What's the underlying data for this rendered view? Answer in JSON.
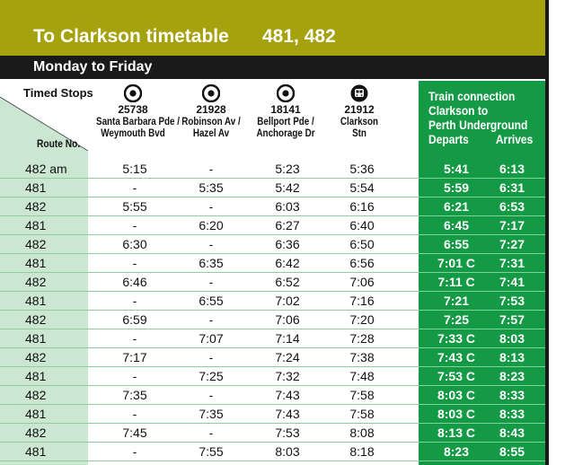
{
  "title": {
    "main": "To Clarkson timetable",
    "routes": "481, 482"
  },
  "day_label": "Monday to Friday",
  "header": {
    "timed_stops": "Timed Stops",
    "route_no": "Route No.",
    "stops": [
      {
        "id": "25738",
        "line1": "Santa Barbara Pde /",
        "line2": "Weymouth Bvd",
        "icon": "bus-stop-icon"
      },
      {
        "id": "21928",
        "line1": "Robinson Av /",
        "line2": "Hazel Av",
        "icon": "bus-stop-icon"
      },
      {
        "id": "18141",
        "line1": "Bellport Pde /",
        "line2": "Anchorage Dr",
        "icon": "bus-stop-icon"
      },
      {
        "id": "21912",
        "line1": "Clarkson",
        "line2": "Stn",
        "icon": "train-icon"
      }
    ],
    "train": {
      "line1": "Train connection",
      "line2": "Clarkson to",
      "line3": "Perth Underground",
      "departs": "Departs",
      "arrives": "Arrives"
    }
  },
  "colors": {
    "olive": "#a5a20e",
    "black": "#1a1a1a",
    "green": "#149a45",
    "light_green": "#cbe7d2"
  },
  "rows": [
    {
      "route": "482 am",
      "s1": "5:15",
      "s2": "-",
      "s3": "5:23",
      "s4": "5:36",
      "dep": "5:41",
      "arr": "6:13"
    },
    {
      "route": "481",
      "s1": "-",
      "s2": "5:35",
      "s3": "5:42",
      "s4": "5:54",
      "dep": "5:59",
      "arr": "6:31"
    },
    {
      "route": "482",
      "s1": "5:55",
      "s2": "-",
      "s3": "6:03",
      "s4": "6:16",
      "dep": "6:21",
      "arr": "6:53"
    },
    {
      "route": "481",
      "s1": "-",
      "s2": "6:20",
      "s3": "6:27",
      "s4": "6:40",
      "dep": "6:45",
      "arr": "7:17"
    },
    {
      "route": "482",
      "s1": "6:30",
      "s2": "-",
      "s3": "6:36",
      "s4": "6:50",
      "dep": "6:55",
      "arr": "7:27"
    },
    {
      "route": "481",
      "s1": "-",
      "s2": "6:35",
      "s3": "6:42",
      "s4": "6:56",
      "dep": "7:01 C",
      "arr": "7:31"
    },
    {
      "route": "482",
      "s1": "6:46",
      "s2": "-",
      "s3": "6:52",
      "s4": "7:06",
      "dep": "7:11 C",
      "arr": "7:41"
    },
    {
      "route": "481",
      "s1": "-",
      "s2": "6:55",
      "s3": "7:02",
      "s4": "7:16",
      "dep": "7:21",
      "arr": "7:53"
    },
    {
      "route": "482",
      "s1": "6:59",
      "s2": "-",
      "s3": "7:06",
      "s4": "7:20",
      "dep": "7:25",
      "arr": "7:57"
    },
    {
      "route": "481",
      "s1": "-",
      "s2": "7:07",
      "s3": "7:14",
      "s4": "7:28",
      "dep": "7:33 C",
      "arr": "8:03"
    },
    {
      "route": "482",
      "s1": "7:17",
      "s2": "-",
      "s3": "7:24",
      "s4": "7:38",
      "dep": "7:43 C",
      "arr": "8:13"
    },
    {
      "route": "481",
      "s1": "-",
      "s2": "7:25",
      "s3": "7:32",
      "s4": "7:48",
      "dep": "7:53 C",
      "arr": "8:23"
    },
    {
      "route": "482",
      "s1": "7:35",
      "s2": "-",
      "s3": "7:43",
      "s4": "7:58",
      "dep": "8:03 C",
      "arr": "8:33"
    },
    {
      "route": "481",
      "s1": "-",
      "s2": "7:35",
      "s3": "7:43",
      "s4": "7:58",
      "dep": "8:03 C",
      "arr": "8:33"
    },
    {
      "route": "482",
      "s1": "7:45",
      "s2": "-",
      "s3": "7:53",
      "s4": "8:08",
      "dep": "8:13 C",
      "arr": "8:43"
    },
    {
      "route": "481",
      "s1": "-",
      "s2": "7:55",
      "s3": "8:03",
      "s4": "8:18",
      "dep": "8:23",
      "arr": "8:55"
    }
  ]
}
